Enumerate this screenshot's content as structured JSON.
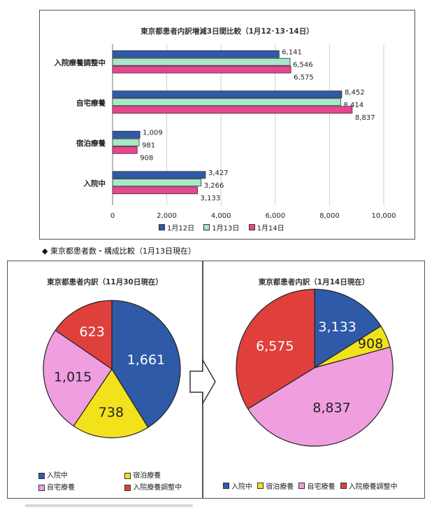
{
  "section_heading": "◆ 東京都患者数・構成比較（1月13日現在）",
  "colors": {
    "day12": "#2e5aa8",
    "day13": "#a8e8c8",
    "day14": "#e8458f",
    "hospitalized": "#2e5aa8",
    "hotel": "#f2e21c",
    "home": "#f09ee0",
    "adjusting": "#e0403c"
  },
  "chart_data": [
    {
      "type": "bar",
      "orientation": "horizontal",
      "title": "東京都患者内訳増減3日間比較（1月12･13･14日）",
      "categories": [
        "入院療養調整中",
        "自宅療養",
        "宿泊療養",
        "入院中"
      ],
      "series": [
        {
          "name": "1月12日",
          "values": [
            6141,
            8452,
            1009,
            3427
          ]
        },
        {
          "name": "1月13日",
          "values": [
            6546,
            8414,
            981,
            3266
          ]
        },
        {
          "name": "1月14日",
          "values": [
            6575,
            8837,
            908,
            3133
          ]
        }
      ],
      "value_labels": [
        [
          "6,141",
          "8,452",
          "1,009",
          "3,427"
        ],
        [
          "6,546",
          "8,414",
          "981",
          "3,266"
        ],
        [
          "6,575",
          "8,837",
          "908",
          "3,133"
        ]
      ],
      "xlim": [
        0,
        10000
      ],
      "x_ticks": [
        "0",
        "2,000",
        "4,000",
        "6,000",
        "8,000",
        "10,000"
      ],
      "grid": true,
      "legend": "bottom"
    },
    {
      "type": "pie",
      "title": "東京都患者内訳（11月30日現在）",
      "labels": [
        "入院中",
        "宿泊療養",
        "自宅療養",
        "入院療養調整中"
      ],
      "values": [
        1661,
        738,
        1015,
        623
      ],
      "value_labels": [
        "1,661",
        "738",
        "1,015",
        "623"
      ],
      "legend": "bottom"
    },
    {
      "type": "pie",
      "title": "東京都患者内訳（1月14日現在）",
      "labels": [
        "入院中",
        "宿泊療養",
        "自宅療養",
        "入院療養調整中"
      ],
      "values": [
        3133,
        908,
        8837,
        6575
      ],
      "value_labels": [
        "3,133",
        "908",
        "8,837",
        "6,575"
      ],
      "legend": "bottom"
    }
  ]
}
